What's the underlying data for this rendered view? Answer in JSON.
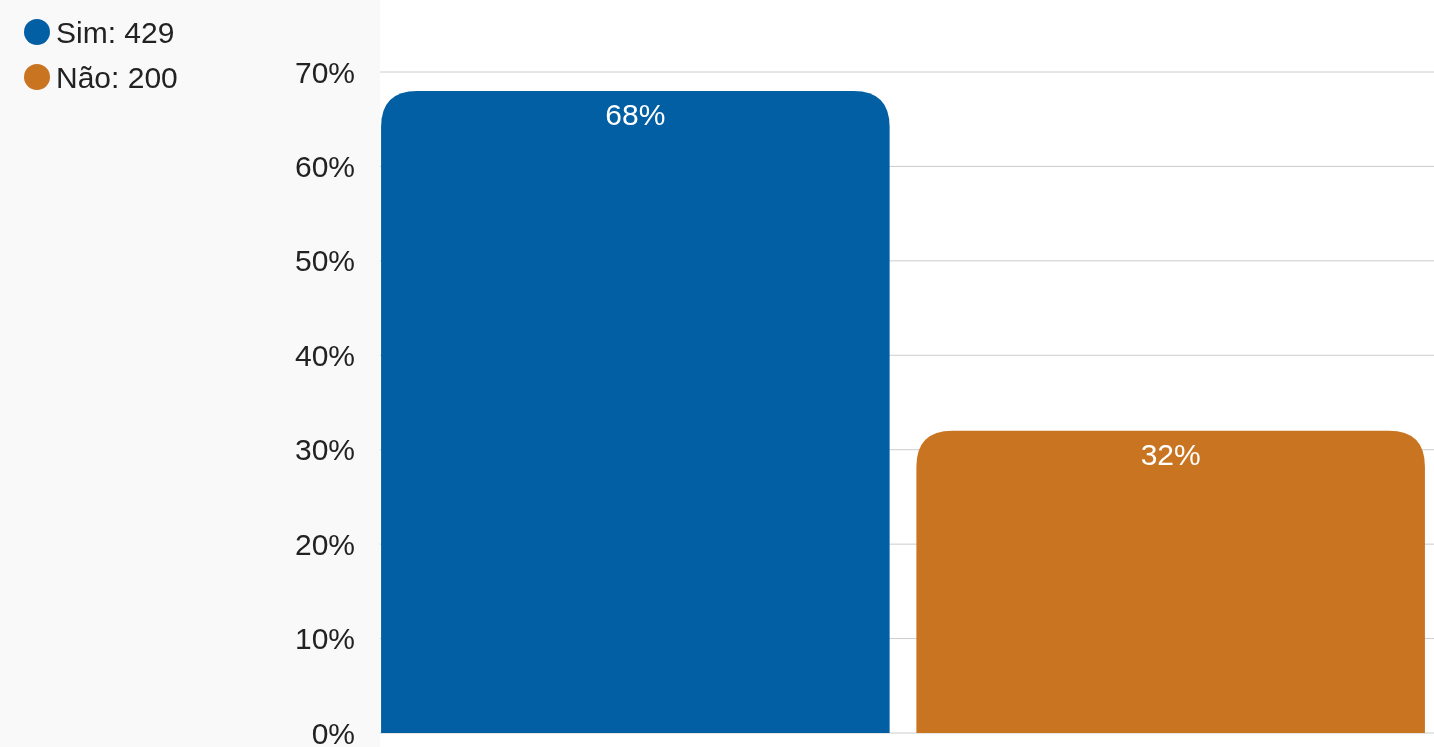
{
  "chart_data": {
    "type": "bar",
    "stacked": true,
    "categories": [
      null,
      null
    ],
    "series": [
      {
        "name": "Sim: 429",
        "color": "#025fa4",
        "values": [
          68,
          null
        ],
        "value_labels": [
          "68%",
          null
        ]
      },
      {
        "name": "Não: 200",
        "color": "#c87420",
        "values": [
          null,
          32
        ],
        "value_labels": [
          null,
          "32%"
        ]
      }
    ],
    "ylim": [
      0,
      70
    ],
    "yticks": [
      {
        "value": 0,
        "label": "0%"
      },
      {
        "value": 10,
        "label": "10%"
      },
      {
        "value": 20,
        "label": "20%"
      },
      {
        "value": 30,
        "label": "30%"
      },
      {
        "value": 40,
        "label": "40%"
      },
      {
        "value": 50,
        "label": "50%"
      },
      {
        "value": 60,
        "label": "60%"
      },
      {
        "value": 70,
        "label": "70%"
      }
    ],
    "grid": "y",
    "legend": "top left"
  }
}
